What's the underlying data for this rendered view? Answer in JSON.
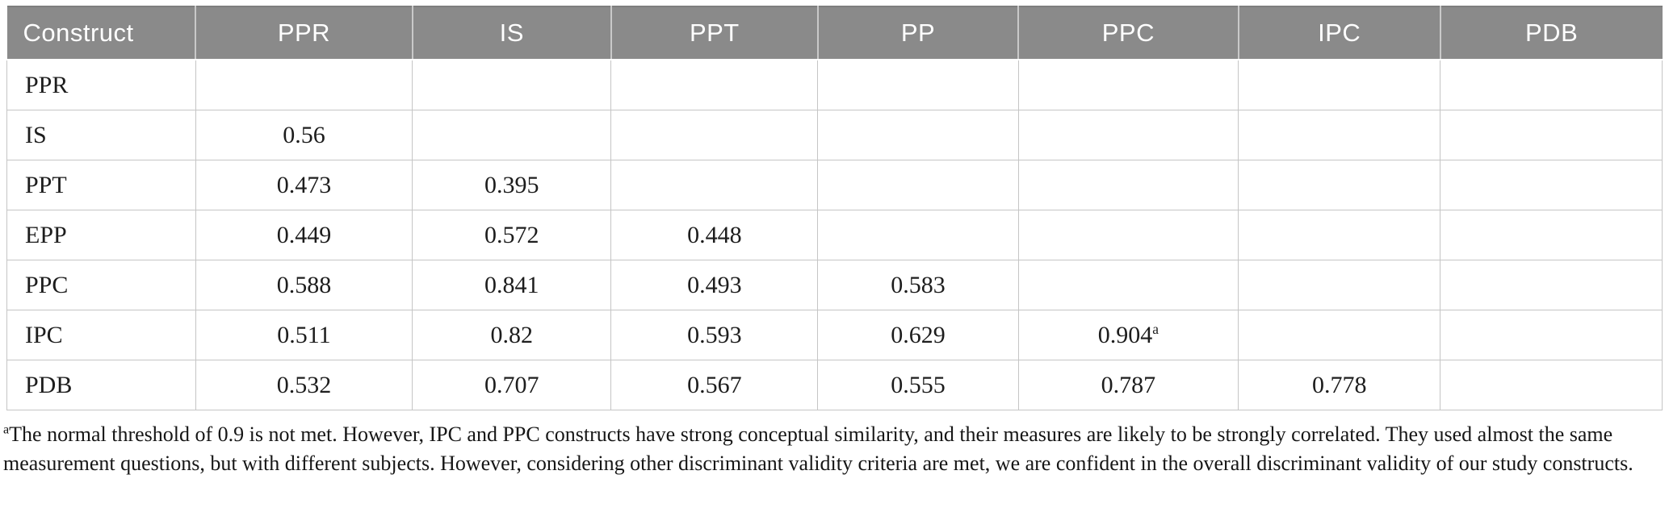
{
  "colors": {
    "header_bg": "#8a8a8a",
    "header_text": "#ffffff",
    "border": "#c5c5c5",
    "body_text": "#1d1d1d"
  },
  "table": {
    "columns": [
      "Construct",
      "PPR",
      "IS",
      "PPT",
      "PP",
      "PPC",
      "IPC",
      "PDB"
    ],
    "rows": [
      {
        "label": "PPR",
        "values": [
          "",
          "",
          "",
          "",
          "",
          "",
          ""
        ]
      },
      {
        "label": "IS",
        "values": [
          "0.56",
          "",
          "",
          "",
          "",
          "",
          ""
        ]
      },
      {
        "label": "PPT",
        "values": [
          "0.473",
          "0.395",
          "",
          "",
          "",
          "",
          ""
        ]
      },
      {
        "label": "EPP",
        "values": [
          "0.449",
          "0.572",
          "0.448",
          "",
          "",
          "",
          ""
        ]
      },
      {
        "label": "PPC",
        "values": [
          "0.588",
          "0.841",
          "0.493",
          "0.583",
          "",
          "",
          ""
        ]
      },
      {
        "label": "IPC",
        "values": [
          "0.511",
          "0.82",
          "0.593",
          "0.629",
          "0.904^a",
          "",
          ""
        ]
      },
      {
        "label": "PDB",
        "values": [
          "0.532",
          "0.707",
          "0.567",
          "0.555",
          "0.787",
          "0.778",
          ""
        ]
      }
    ]
  },
  "footnote": {
    "marker": "a",
    "text": "The normal threshold of 0.9 is not met. However, IPC and PPC constructs have strong conceptual similarity, and their measures are likely to be strongly correlated. They used almost the same measurement questions, but with different subjects. However, considering other discriminant validity criteria are met, we are confident in the overall discriminant validity of our study constructs."
  }
}
